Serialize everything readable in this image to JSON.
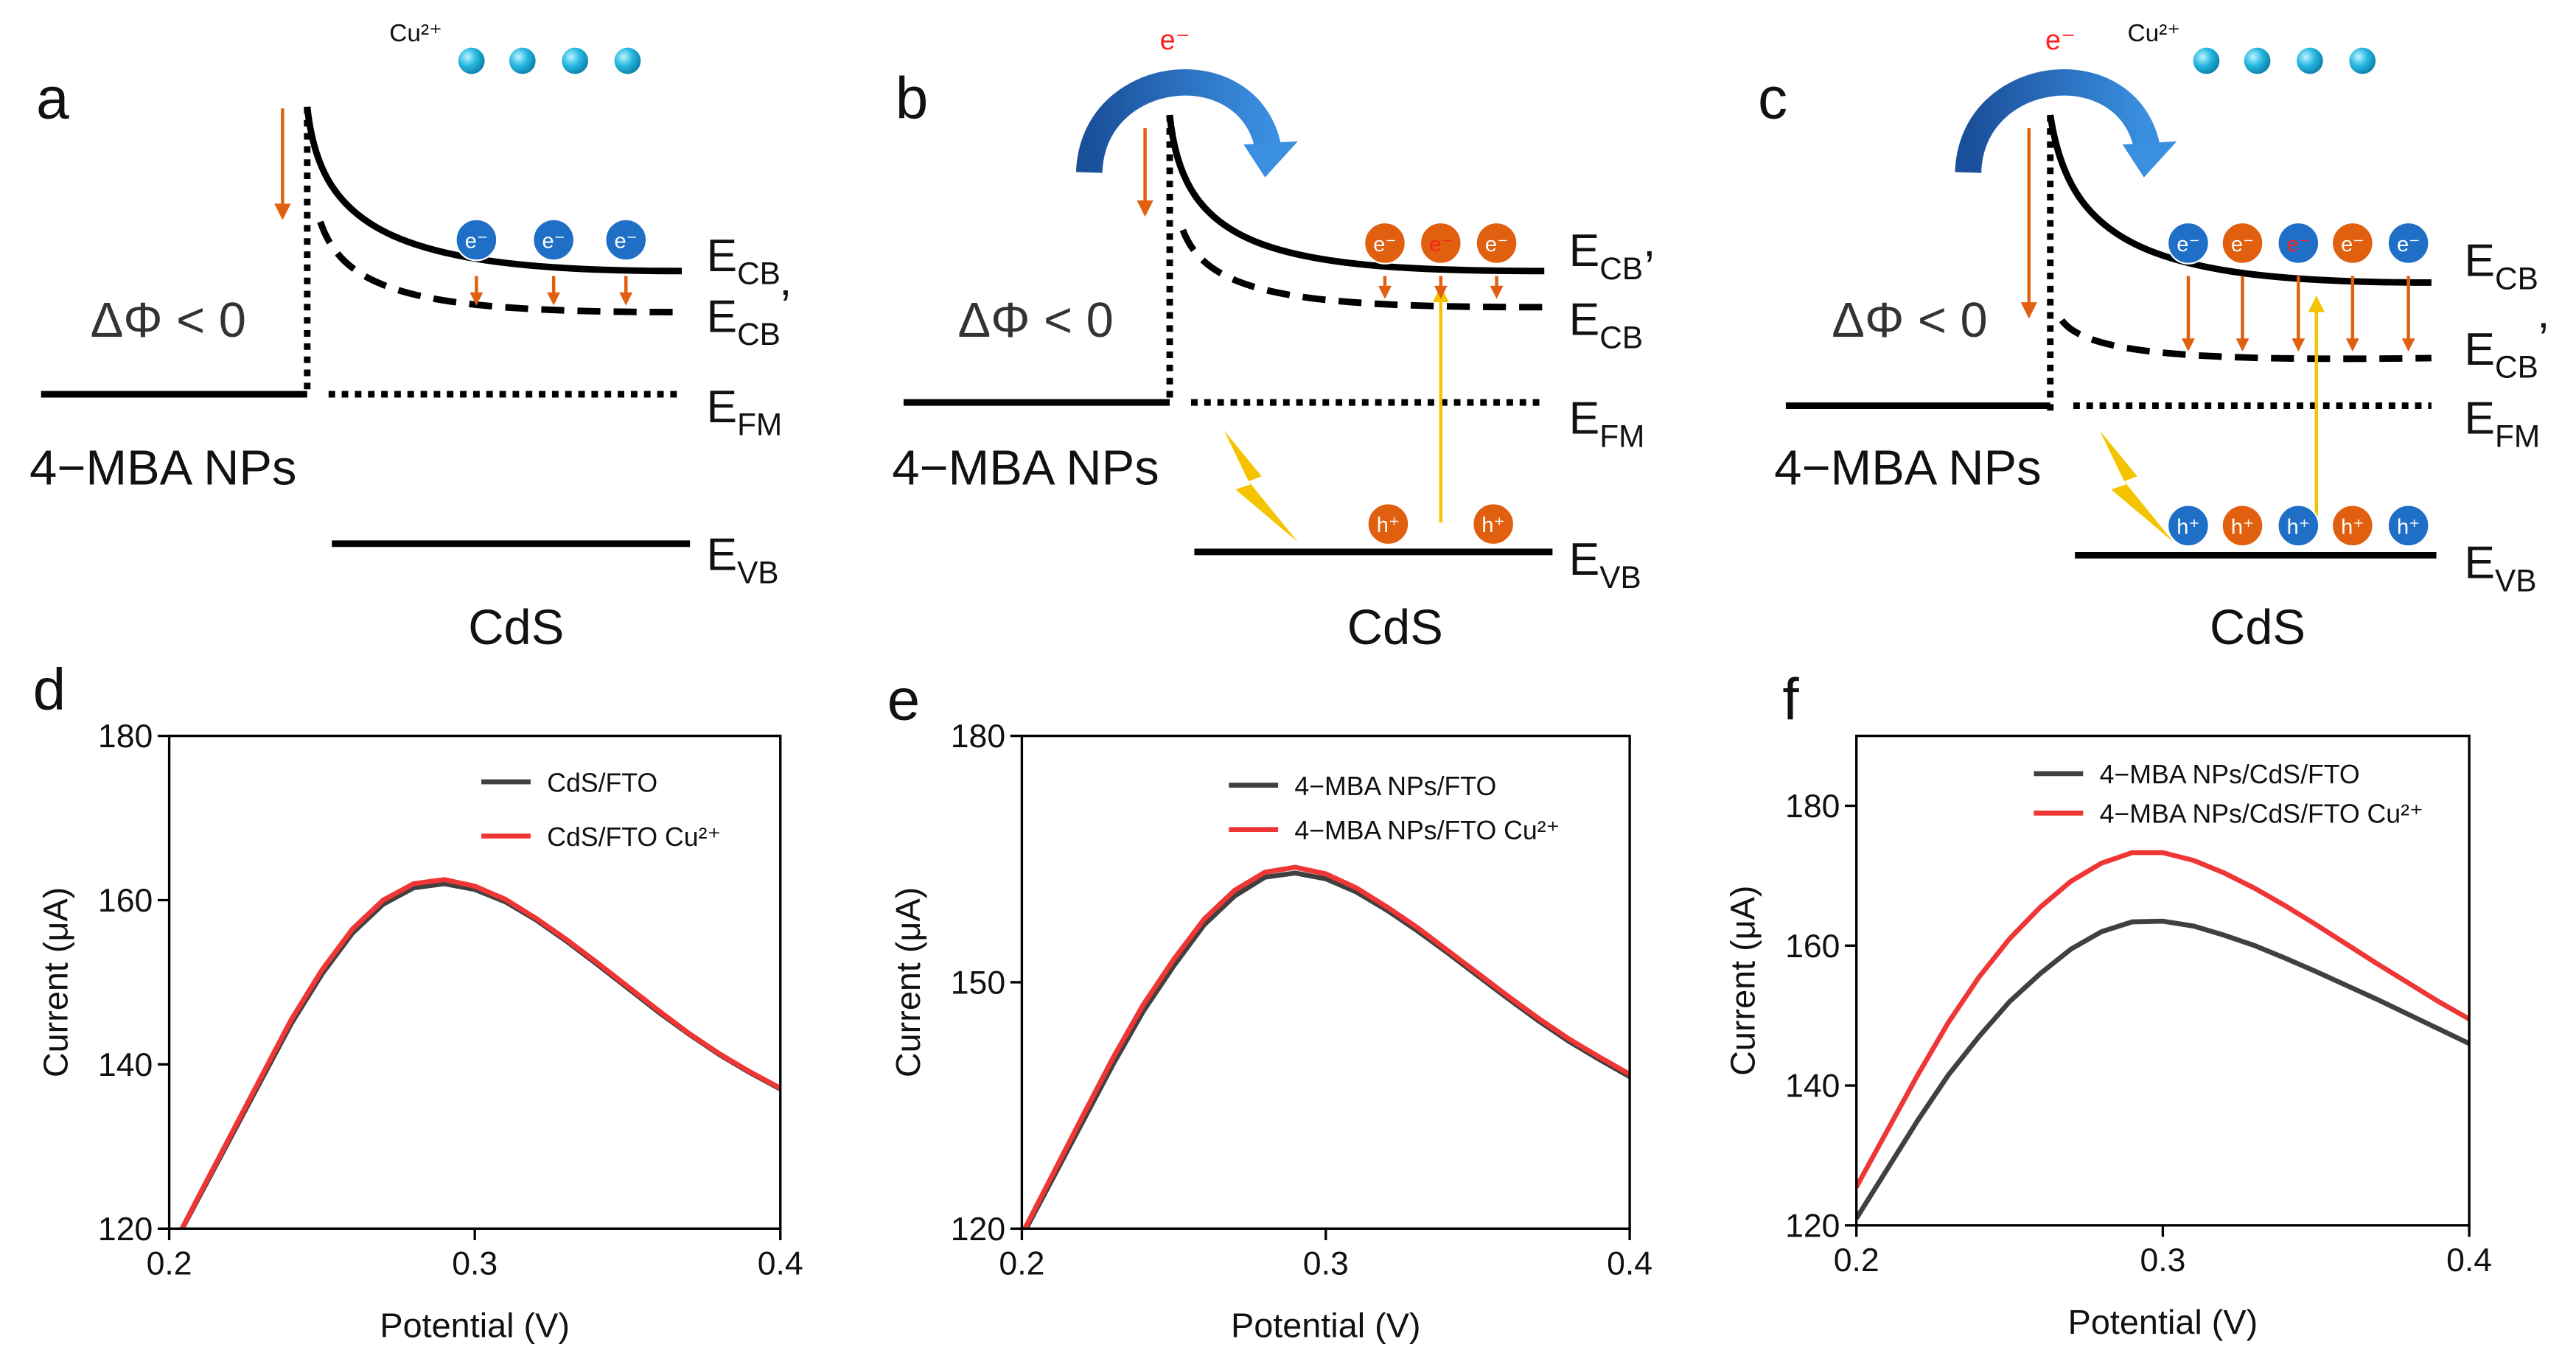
{
  "diagrams": [
    {
      "label": "a",
      "ion": "Cu²⁺",
      "delta": "ΔΦ < 0",
      "material_left": "4−MBA NPs",
      "material_right": "CdS",
      "levels": [
        {
          "symbol": "E",
          "sub": "CB"
        },
        {
          "symbol": "E",
          "sub": "CB",
          "suffix": "’"
        },
        {
          "symbol": "E",
          "sub": "FM"
        },
        {
          "symbol": "E",
          "sub": "VB"
        }
      ],
      "electrons": [
        "e⁻",
        "e⁻",
        "e⁻"
      ]
    },
    {
      "label": "b",
      "transfer": "e⁻",
      "delta": "ΔΦ < 0",
      "material_left": "4−MBA NPs",
      "material_right": "CdS",
      "levels": [
        {
          "symbol": "E",
          "sub": "CB",
          "suffix": ","
        },
        {
          "symbol": "E",
          "sub": "CB"
        },
        {
          "symbol": "E",
          "sub": "FM"
        },
        {
          "symbol": "E",
          "sub": "VB"
        }
      ],
      "electrons": [
        "e⁻",
        "e⁻",
        "e⁻"
      ],
      "holes": [
        "h⁺",
        "h⁺"
      ]
    },
    {
      "label": "c",
      "transfer": "e⁻",
      "ion": "Cu²⁺",
      "delta": "ΔΦ < 0",
      "material_left": "4−MBA NPs",
      "material_right": "CdS",
      "levels": [
        {
          "symbol": "E",
          "sub": "CB"
        },
        {
          "symbol": "E",
          "sub": "CB",
          "suffix": "’"
        },
        {
          "symbol": "E",
          "sub": "FM"
        },
        {
          "symbol": "E",
          "sub": "VB"
        }
      ],
      "electrons": [
        "e⁻",
        "e⁻",
        "e⁻",
        "e⁻",
        "e⁻"
      ],
      "holes": [
        "h⁺",
        "h⁺",
        "h⁺",
        "h⁺",
        "h⁺"
      ]
    }
  ],
  "chart_data": [
    {
      "type": "line",
      "panel": "d",
      "xlabel": "Potential (V)",
      "ylabel": "Current (μA)",
      "x": [
        0.2,
        0.21,
        0.22,
        0.23,
        0.24,
        0.25,
        0.26,
        0.27,
        0.28,
        0.29,
        0.3,
        0.31,
        0.32,
        0.33,
        0.34,
        0.35,
        0.36,
        0.37,
        0.38,
        0.39,
        0.4
      ],
      "xlim": [
        0.2,
        0.4
      ],
      "xticks": [
        0.2,
        0.3,
        0.4
      ],
      "ylim": [
        120,
        180
      ],
      "yticks": [
        120,
        140,
        160,
        180
      ],
      "series": [
        {
          "name": "CdS/FTO",
          "color": "#404040",
          "values": [
            117,
            124,
            131,
            138,
            145,
            151,
            156,
            159.5,
            161.5,
            162,
            161.3,
            159.8,
            157.6,
            155,
            152.2,
            149.3,
            146.4,
            143.7,
            141.2,
            139,
            137
          ]
        },
        {
          "name": "CdS/FTO Cu²⁺",
          "color": "#f03535",
          "values": [
            117,
            124.2,
            131.3,
            138.4,
            145.5,
            151.5,
            156.5,
            160,
            162,
            162.5,
            161.7,
            160.1,
            157.8,
            155.2,
            152.4,
            149.5,
            146.6,
            143.8,
            141.3,
            139.1,
            137.1
          ]
        }
      ]
    },
    {
      "type": "line",
      "panel": "e",
      "xlabel": "Potential (V)",
      "ylabel": "Current (μA)",
      "x": [
        0.2,
        0.21,
        0.22,
        0.23,
        0.24,
        0.25,
        0.26,
        0.27,
        0.28,
        0.29,
        0.3,
        0.31,
        0.32,
        0.33,
        0.34,
        0.35,
        0.36,
        0.37,
        0.38,
        0.39,
        0.4
      ],
      "xlim": [
        0.2,
        0.4
      ],
      "xticks": [
        0.2,
        0.3,
        0.4
      ],
      "ylim": [
        120,
        180
      ],
      "yticks": [
        120,
        150,
        180
      ],
      "series": [
        {
          "name": "4−MBA NPs/FTO",
          "color": "#404040",
          "values": [
            119,
            126,
            133,
            140,
            146.5,
            152,
            157,
            160.5,
            162.8,
            163.3,
            162.6,
            161,
            158.8,
            156.3,
            153.6,
            150.8,
            148,
            145.3,
            142.8,
            140.6,
            138.5
          ]
        },
        {
          "name": "4−MBA NPs/FTO Cu²⁺",
          "color": "#f03535",
          "values": [
            119.3,
            126.5,
            133.7,
            140.8,
            147.3,
            152.8,
            157.7,
            161.2,
            163.4,
            164,
            163.2,
            161.5,
            159.2,
            156.7,
            153.9,
            151.1,
            148.3,
            145.6,
            143.1,
            140.9,
            138.8
          ]
        }
      ]
    },
    {
      "type": "line",
      "panel": "f",
      "xlabel": "Potential (V)",
      "ylabel": "Current (μA)",
      "x": [
        0.2,
        0.21,
        0.22,
        0.23,
        0.24,
        0.25,
        0.26,
        0.27,
        0.28,
        0.29,
        0.3,
        0.31,
        0.32,
        0.33,
        0.34,
        0.35,
        0.36,
        0.37,
        0.38,
        0.39,
        0.4
      ],
      "xlim": [
        0.2,
        0.4
      ],
      "xticks": [
        0.2,
        0.3,
        0.4
      ],
      "ylim": [
        120,
        190
      ],
      "yticks": [
        120,
        140,
        160,
        180
      ],
      "series": [
        {
          "name": "4−MBA NPs/CdS/FTO",
          "color": "#404040",
          "values": [
            121,
            128,
            135,
            141.5,
            147,
            152,
            156,
            159.5,
            162,
            163.4,
            163.5,
            162.8,
            161.5,
            160,
            158.2,
            156.3,
            154.3,
            152.3,
            150.2,
            148.1,
            146
          ]
        },
        {
          "name": "4−MBA NPs/CdS/FTO Cu²⁺",
          "color": "#f03535",
          "values": [
            125.5,
            133.5,
            141.5,
            149,
            155.5,
            161,
            165.5,
            169.2,
            171.8,
            173.3,
            173.3,
            172.2,
            170.4,
            168.2,
            165.7,
            163,
            160.2,
            157.4,
            154.7,
            152,
            149.5
          ]
        }
      ]
    }
  ]
}
